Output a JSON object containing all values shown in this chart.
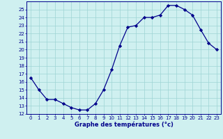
{
  "hours": [
    0,
    1,
    2,
    3,
    4,
    5,
    6,
    7,
    8,
    9,
    10,
    11,
    12,
    13,
    14,
    15,
    16,
    17,
    18,
    19,
    20,
    21,
    22,
    23
  ],
  "temperatures": [
    16.5,
    15.0,
    13.8,
    13.8,
    13.3,
    12.8,
    12.5,
    12.5,
    13.3,
    15.0,
    17.5,
    20.5,
    22.8,
    23.0,
    24.0,
    24.0,
    24.3,
    25.5,
    25.5,
    25.0,
    24.3,
    22.5,
    20.8,
    20.0
  ],
  "line_color": "#00008B",
  "marker": "D",
  "marker_size": 2.2,
  "bg_color": "#cff0f0",
  "grid_color": "#9dd4d4",
  "xlabel": "Graphe des températures (°c)",
  "xlabel_color": "#00008B",
  "tick_color": "#00008B",
  "ylim": [
    12,
    26
  ],
  "xlim": [
    -0.5,
    23.5
  ],
  "yticks": [
    12,
    13,
    14,
    15,
    16,
    17,
    18,
    19,
    20,
    21,
    22,
    23,
    24,
    25
  ],
  "xticks": [
    0,
    1,
    2,
    3,
    4,
    5,
    6,
    7,
    8,
    9,
    10,
    11,
    12,
    13,
    14,
    15,
    16,
    17,
    18,
    19,
    20,
    21,
    22,
    23
  ],
  "tick_fontsize": 5.0,
  "xlabel_fontsize": 6.0
}
